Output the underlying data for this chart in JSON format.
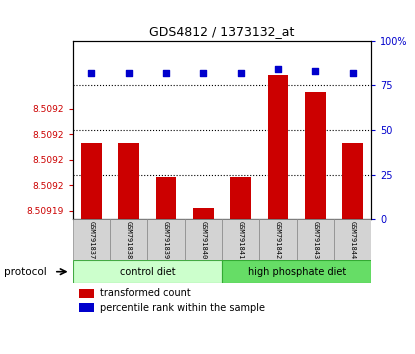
{
  "title": "GDS4812 / 1373132_at",
  "samples": [
    "GSM791837",
    "GSM791838",
    "GSM791839",
    "GSM791840",
    "GSM791841",
    "GSM791842",
    "GSM791843",
    "GSM791844"
  ],
  "transformed_counts": [
    8.50923,
    8.50923,
    8.50921,
    8.509192,
    8.50921,
    8.50927,
    8.50926,
    8.50923
  ],
  "percentile_ranks": [
    82,
    82,
    82,
    82,
    82,
    84,
    83,
    82
  ],
  "groups": [
    "control diet",
    "control diet",
    "control diet",
    "control diet",
    "high phosphate diet",
    "high phosphate diet",
    "high phosphate diet",
    "high phosphate diet"
  ],
  "bar_color": "#cc0000",
  "dot_color": "#0000cc",
  "y_min": 8.509185,
  "y_max": 8.50929,
  "y_ticks": [
    8.50919,
    8.509205,
    8.50922,
    8.509235,
    8.50925
  ],
  "y_tick_labels": [
    "8.50919",
    "8.5092",
    "8.5092",
    "8.5092",
    "8.5092"
  ],
  "right_ticks": [
    0,
    25,
    50,
    75,
    100
  ],
  "right_tick_labels": [
    "0",
    "25",
    "50",
    "75",
    "100%"
  ],
  "legend_items": [
    "transformed count",
    "percentile rank within the sample"
  ],
  "legend_colors": [
    "#cc0000",
    "#0000cc"
  ],
  "ctrl_color": "#ccffcc",
  "high_color": "#66dd66"
}
